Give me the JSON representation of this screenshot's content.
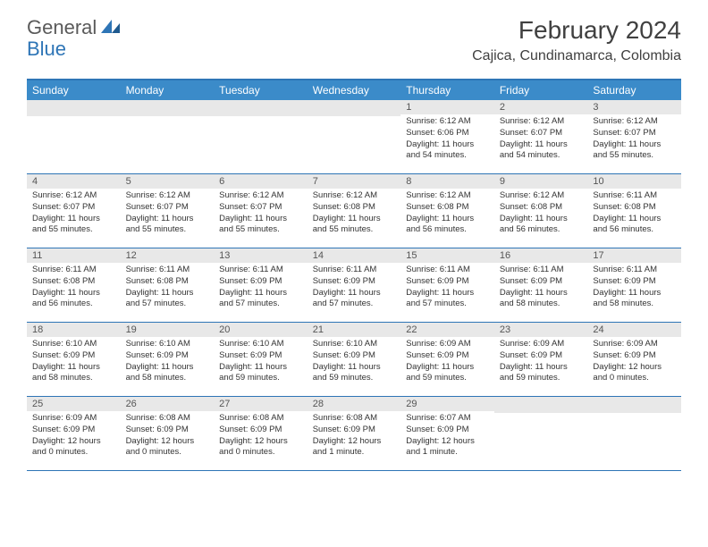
{
  "logo": {
    "general": "General",
    "blue": "Blue"
  },
  "title": "February 2024",
  "location": "Cajica, Cundinamarca, Colombia",
  "colors": {
    "header_bg": "#3b8bc9",
    "border": "#2e75b6",
    "daynum_bg": "#e8e8e8",
    "text": "#333333",
    "title_text": "#404040",
    "logo_gray": "#5a5a5a",
    "logo_blue": "#2e75b6"
  },
  "day_names": [
    "Sunday",
    "Monday",
    "Tuesday",
    "Wednesday",
    "Thursday",
    "Friday",
    "Saturday"
  ],
  "weeks": [
    [
      null,
      null,
      null,
      null,
      {
        "n": "1",
        "sr": "6:12 AM",
        "ss": "6:06 PM",
        "dl": "11 hours and 54 minutes."
      },
      {
        "n": "2",
        "sr": "6:12 AM",
        "ss": "6:07 PM",
        "dl": "11 hours and 54 minutes."
      },
      {
        "n": "3",
        "sr": "6:12 AM",
        "ss": "6:07 PM",
        "dl": "11 hours and 55 minutes."
      }
    ],
    [
      {
        "n": "4",
        "sr": "6:12 AM",
        "ss": "6:07 PM",
        "dl": "11 hours and 55 minutes."
      },
      {
        "n": "5",
        "sr": "6:12 AM",
        "ss": "6:07 PM",
        "dl": "11 hours and 55 minutes."
      },
      {
        "n": "6",
        "sr": "6:12 AM",
        "ss": "6:07 PM",
        "dl": "11 hours and 55 minutes."
      },
      {
        "n": "7",
        "sr": "6:12 AM",
        "ss": "6:08 PM",
        "dl": "11 hours and 55 minutes."
      },
      {
        "n": "8",
        "sr": "6:12 AM",
        "ss": "6:08 PM",
        "dl": "11 hours and 56 minutes."
      },
      {
        "n": "9",
        "sr": "6:12 AM",
        "ss": "6:08 PM",
        "dl": "11 hours and 56 minutes."
      },
      {
        "n": "10",
        "sr": "6:11 AM",
        "ss": "6:08 PM",
        "dl": "11 hours and 56 minutes."
      }
    ],
    [
      {
        "n": "11",
        "sr": "6:11 AM",
        "ss": "6:08 PM",
        "dl": "11 hours and 56 minutes."
      },
      {
        "n": "12",
        "sr": "6:11 AM",
        "ss": "6:08 PM",
        "dl": "11 hours and 57 minutes."
      },
      {
        "n": "13",
        "sr": "6:11 AM",
        "ss": "6:09 PM",
        "dl": "11 hours and 57 minutes."
      },
      {
        "n": "14",
        "sr": "6:11 AM",
        "ss": "6:09 PM",
        "dl": "11 hours and 57 minutes."
      },
      {
        "n": "15",
        "sr": "6:11 AM",
        "ss": "6:09 PM",
        "dl": "11 hours and 57 minutes."
      },
      {
        "n": "16",
        "sr": "6:11 AM",
        "ss": "6:09 PM",
        "dl": "11 hours and 58 minutes."
      },
      {
        "n": "17",
        "sr": "6:11 AM",
        "ss": "6:09 PM",
        "dl": "11 hours and 58 minutes."
      }
    ],
    [
      {
        "n": "18",
        "sr": "6:10 AM",
        "ss": "6:09 PM",
        "dl": "11 hours and 58 minutes."
      },
      {
        "n": "19",
        "sr": "6:10 AM",
        "ss": "6:09 PM",
        "dl": "11 hours and 58 minutes."
      },
      {
        "n": "20",
        "sr": "6:10 AM",
        "ss": "6:09 PM",
        "dl": "11 hours and 59 minutes."
      },
      {
        "n": "21",
        "sr": "6:10 AM",
        "ss": "6:09 PM",
        "dl": "11 hours and 59 minutes."
      },
      {
        "n": "22",
        "sr": "6:09 AM",
        "ss": "6:09 PM",
        "dl": "11 hours and 59 minutes."
      },
      {
        "n": "23",
        "sr": "6:09 AM",
        "ss": "6:09 PM",
        "dl": "11 hours and 59 minutes."
      },
      {
        "n": "24",
        "sr": "6:09 AM",
        "ss": "6:09 PM",
        "dl": "12 hours and 0 minutes."
      }
    ],
    [
      {
        "n": "25",
        "sr": "6:09 AM",
        "ss": "6:09 PM",
        "dl": "12 hours and 0 minutes."
      },
      {
        "n": "26",
        "sr": "6:08 AM",
        "ss": "6:09 PM",
        "dl": "12 hours and 0 minutes."
      },
      {
        "n": "27",
        "sr": "6:08 AM",
        "ss": "6:09 PM",
        "dl": "12 hours and 0 minutes."
      },
      {
        "n": "28",
        "sr": "6:08 AM",
        "ss": "6:09 PM",
        "dl": "12 hours and 1 minute."
      },
      {
        "n": "29",
        "sr": "6:07 AM",
        "ss": "6:09 PM",
        "dl": "12 hours and 1 minute."
      },
      null,
      null
    ]
  ],
  "labels": {
    "sunrise": "Sunrise: ",
    "sunset": "Sunset: ",
    "daylight": "Daylight: "
  }
}
